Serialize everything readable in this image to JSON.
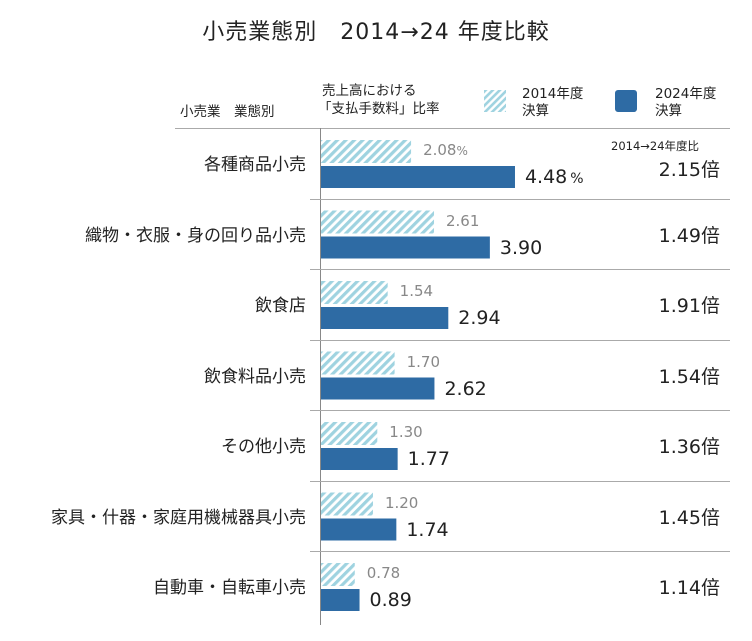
{
  "chart_data": {
    "type": "bar",
    "title": "小売業態別　2014→24 年度比較",
    "category_header": "小売業　業態別",
    "value_header": [
      "売上高における",
      "「支払手数料」比率"
    ],
    "ratio_header": "2014→24年度比",
    "unit": "%",
    "ratio_suffix": "倍",
    "legend": [
      {
        "name": "2014年度\n決算",
        "line1": "2014年度",
        "line2": "決算",
        "color": "#9fd3e0",
        "style": "hatched"
      },
      {
        "name": "2024年度\n決算",
        "line1": "2024年度",
        "line2": "決算",
        "color": "#2e6ba4",
        "style": "solid"
      }
    ],
    "categories": [
      "各種商品小売",
      "織物・衣服・身の回り品小売",
      "飲食店",
      "飲食料品小売",
      "その他小売",
      "家具・什器・家庭用機械器具小売",
      "自動車・自転車小売"
    ],
    "series": [
      {
        "name": "2014年度決算",
        "values": [
          2.08,
          2.61,
          1.54,
          1.7,
          1.3,
          1.2,
          0.78
        ],
        "labels": [
          "2.08",
          "2.61",
          "1.54",
          "1.70",
          "1.30",
          "1.20",
          "0.78"
        ]
      },
      {
        "name": "2024年度決算",
        "values": [
          4.48,
          3.9,
          2.94,
          2.62,
          1.77,
          1.74,
          0.89
        ],
        "labels": [
          "4.48",
          "3.90",
          "2.94",
          "2.62",
          "1.77",
          "1.74",
          "0.89"
        ]
      }
    ],
    "ratios": [
      "2.15",
      "1.49",
      "1.91",
      "1.54",
      "1.36",
      "1.45",
      "1.14"
    ]
  }
}
